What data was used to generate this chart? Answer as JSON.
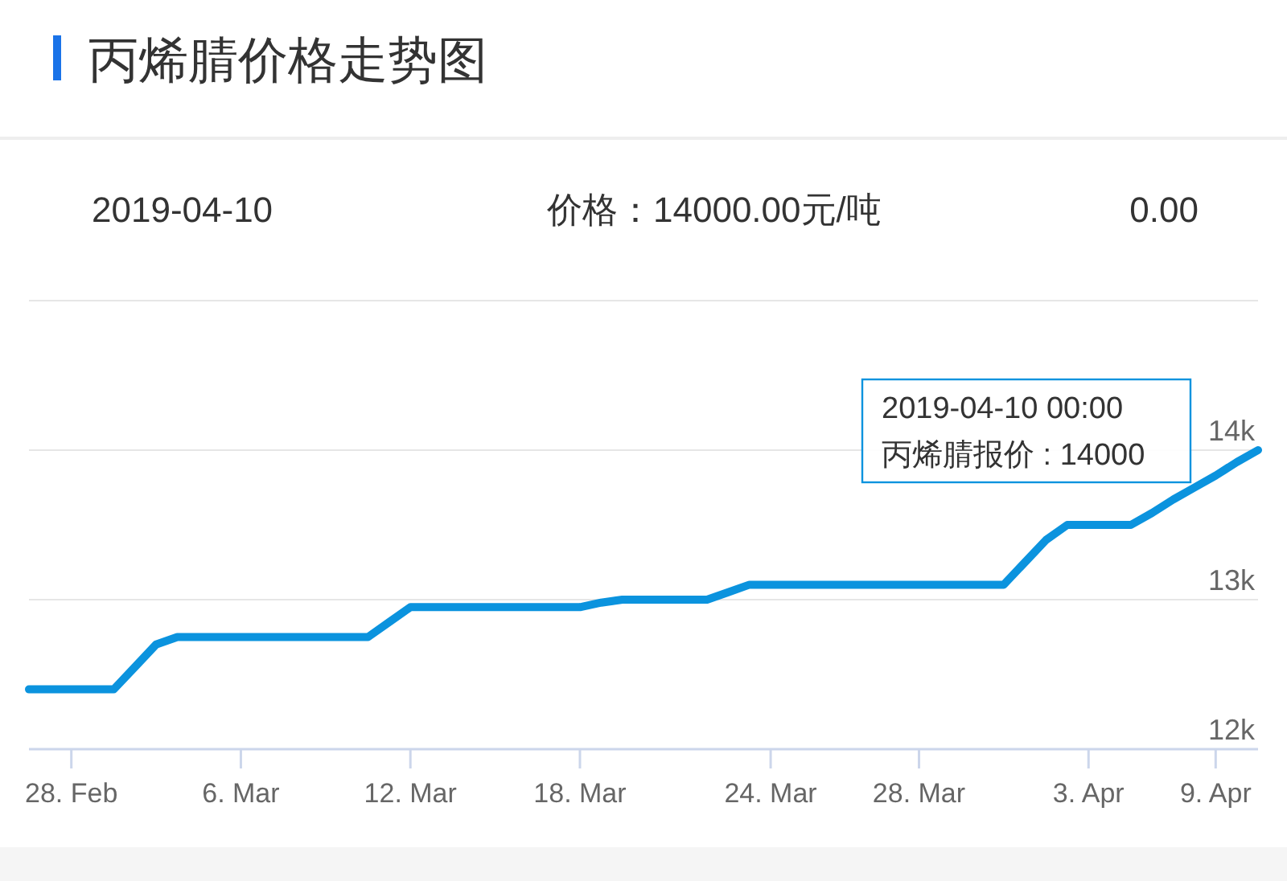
{
  "chart_data": {
    "type": "line",
    "title": "丙烯腈价格走势图",
    "annotations": [
      "2019-04-10",
      "价格：14000.00元/吨",
      "0.00",
      "2019-04-10 00:00",
      "丙烯腈报价 : 14000"
    ],
    "categories": [
      null,
      null,
      "28. Feb",
      null,
      null,
      null,
      null,
      null,
      null,
      null,
      "6. Mar",
      null,
      null,
      null,
      null,
      null,
      null,
      null,
      "12. Mar",
      null,
      null,
      null,
      null,
      null,
      null,
      null,
      "18. Mar",
      null,
      null,
      null,
      null,
      null,
      null,
      null,
      null,
      "24. Mar",
      null,
      null,
      null,
      null,
      null,
      null,
      "28. Mar",
      null,
      null,
      null,
      null,
      null,
      null,
      null,
      "3. Apr",
      null,
      null,
      null,
      null,
      null,
      "9. Apr",
      null,
      null
    ],
    "series": [
      {
        "color": "#0b93de",
        "values": [
          12400,
          12400,
          12400,
          12400,
          12400,
          12550,
          12700,
          12750,
          12750,
          12750,
          12750,
          12750,
          12750,
          12750,
          12750,
          12750,
          12750,
          12850,
          12950,
          12950,
          12950,
          12950,
          12950,
          12950,
          12950,
          12950,
          12950,
          12980,
          13000,
          13000,
          13000,
          13000,
          13000,
          13050,
          13100,
          13100,
          13100,
          13100,
          13100,
          13100,
          13100,
          13100,
          13100,
          13100,
          13100,
          13100,
          13100,
          13250,
          13400,
          13500,
          13500,
          13500,
          13500,
          13580,
          13670,
          13750,
          13830,
          13920,
          14000
        ]
      }
    ],
    "ylim": [
      12000,
      15000
    ],
    "yticks": [
      {
        "value": 12000,
        "label": "12k"
      },
      {
        "value": 13000,
        "label": "13k"
      },
      {
        "value": 14000,
        "label": "14k"
      },
      {
        "value": 15000,
        "label": null
      }
    ],
    "grid": "y",
    "line_style": "solid"
  }
}
